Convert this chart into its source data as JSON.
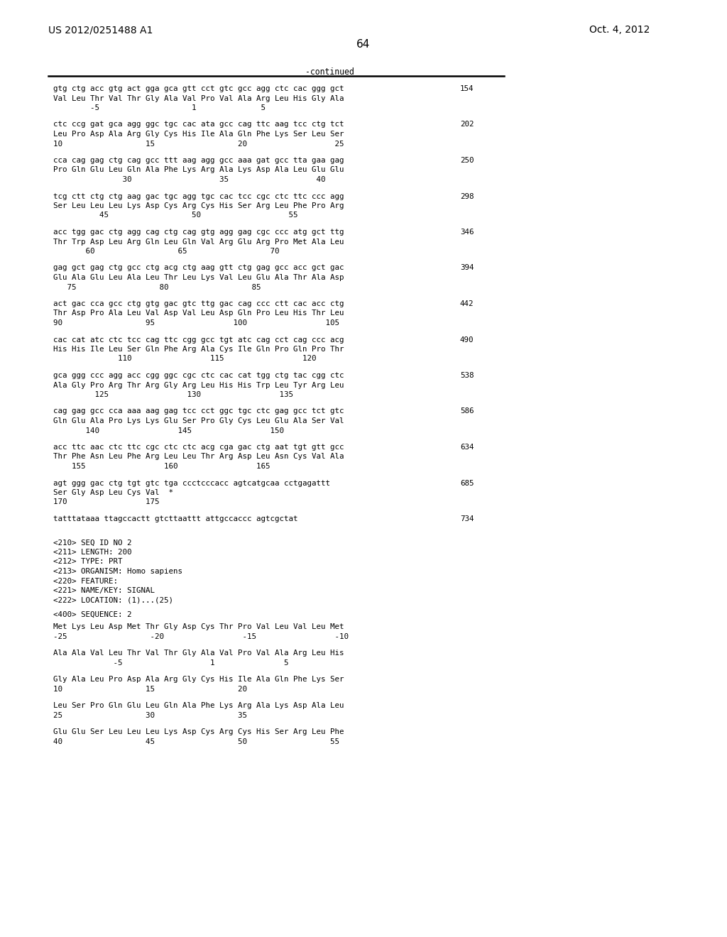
{
  "header_left": "US 2012/0251488 A1",
  "header_right": "Oct. 4, 2012",
  "page_number": "64",
  "continued_label": "-continued",
  "background_color": "#ffffff",
  "text_color": "#000000",
  "font_size": 7.8,
  "mono_font": "DejaVu Sans Mono",
  "header_font_size": 10,
  "seq_blocks": [
    {
      "dna": "gtg ctg acc gtg act gga gca gtt cct gtc gcc agg ctc cac ggg gct",
      "num": "154",
      "aa": "Val Leu Thr Val Thr Gly Ala Val Pro Val Ala Arg Leu His Gly Ala",
      "pos": "        -5                    1              5"
    },
    {
      "dna": "ctc ccg gat gca agg ggc tgc cac ata gcc cag ttc aag tcc ctg tct",
      "num": "202",
      "aa": "Leu Pro Asp Ala Arg Gly Cys His Ile Ala Gln Phe Lys Ser Leu Ser",
      "pos": "10                  15                  20                   25"
    },
    {
      "dna": "cca cag gag ctg cag gcc ttt aag agg gcc aaa gat gcc tta gaa gag",
      "num": "250",
      "aa": "Pro Gln Glu Leu Gln Ala Phe Lys Arg Ala Lys Asp Ala Leu Glu Glu",
      "pos": "               30                   35                   40"
    },
    {
      "dna": "tcg ctt ctg ctg aag gac tgc agg tgc cac tcc cgc ctc ttc ccc agg",
      "num": "298",
      "aa": "Ser Leu Leu Leu Lys Asp Cys Arg Cys His Ser Arg Leu Phe Pro Arg",
      "pos": "          45                  50                   55"
    },
    {
      "dna": "acc tgg gac ctg agg cag ctg cag gtg agg gag cgc ccc atg gct ttg",
      "num": "346",
      "aa": "Thr Trp Asp Leu Arg Gln Leu Gln Val Arg Glu Arg Pro Met Ala Leu",
      "pos": "       60                  65                  70"
    },
    {
      "dna": "gag gct gag ctg gcc ctg acg ctg aag gtt ctg gag gcc acc gct gac",
      "num": "394",
      "aa": "Glu Ala Glu Leu Ala Leu Thr Leu Lys Val Leu Glu Ala Thr Ala Asp",
      "pos": "   75                  80                  85"
    },
    {
      "dna": "act gac cca gcc ctg gtg gac gtc ttg gac cag ccc ctt cac acc ctg",
      "num": "442",
      "aa": "Thr Asp Pro Ala Leu Val Asp Val Leu Asp Gln Pro Leu His Thr Leu",
      "pos": "90                  95                 100                 105"
    },
    {
      "dna": "cac cat atc ctc tcc cag ttc cgg gcc tgt atc cag cct cag ccc acg",
      "num": "490",
      "aa": "His His Ile Leu Ser Gln Phe Arg Ala Cys Ile Gln Pro Gln Pro Thr",
      "pos": "              110                 115                 120"
    },
    {
      "dna": "gca ggg ccc agg acc cgg ggc cgc ctc cac cat tgg ctg tac cgg ctc",
      "num": "538",
      "aa": "Ala Gly Pro Arg Thr Arg Gly Arg Leu His His Trp Leu Tyr Arg Leu",
      "pos": "         125                 130                 135"
    },
    {
      "dna": "cag gag gcc cca aaa aag gag tcc cct ggc tgc ctc gag gcc tct gtc",
      "num": "586",
      "aa": "Gln Glu Ala Pro Lys Lys Glu Ser Pro Gly Cys Leu Glu Ala Ser Val",
      "pos": "       140                 145                 150"
    },
    {
      "dna": "acc ttc aac ctc ttc cgc ctc ctc acg cga gac ctg aat tgt gtt gcc",
      "num": "634",
      "aa": "Thr Phe Asn Leu Phe Arg Leu Leu Thr Arg Asp Leu Asn Cys Val Ala",
      "pos": "    155                 160                 165"
    },
    {
      "dna": "agt ggg gac ctg tgt gtc tga ccctcccacc agtcatgcaa cctgagattt",
      "num": "685",
      "aa": "Ser Gly Asp Leu Cys Val  *",
      "pos": "170                 175"
    }
  ],
  "plain_line": {
    "text": "tatttataaa ttagccactt gtcttaattt attgccaccc agtcgctat",
    "num": "734"
  },
  "metadata": [
    "<210> SEQ ID NO 2",
    "<211> LENGTH: 200",
    "<212> TYPE: PRT",
    "<213> ORGANISM: Homo sapiens",
    "<220> FEATURE:",
    "<221> NAME/KEY: SIGNAL",
    "<222> LOCATION: (1)...(25)"
  ],
  "seq2_header": "<400> SEQUENCE: 2",
  "seq2_blocks": [
    {
      "aa": "Met Lys Leu Asp Met Thr Gly Asp Cys Thr Pro Val Leu Val Leu Met",
      "pos": "-25                  -20                 -15                 -10"
    },
    {
      "aa": "Ala Ala Val Leu Thr Val Thr Gly Ala Val Pro Val Ala Arg Leu His",
      "pos": "             -5                   1               5"
    },
    {
      "aa": "Gly Ala Leu Pro Asp Ala Arg Gly Cys His Ile Ala Gln Phe Lys Ser",
      "pos": "10                  15                  20"
    },
    {
      "aa": "Leu Ser Pro Gln Glu Leu Gln Ala Phe Lys Arg Ala Lys Asp Ala Leu",
      "pos": "25                  30                  35"
    },
    {
      "aa": "Glu Glu Ser Leu Leu Leu Lys Asp Cys Arg Cys His Ser Arg Leu Phe",
      "pos": "40                  45                  50                  55"
    }
  ]
}
